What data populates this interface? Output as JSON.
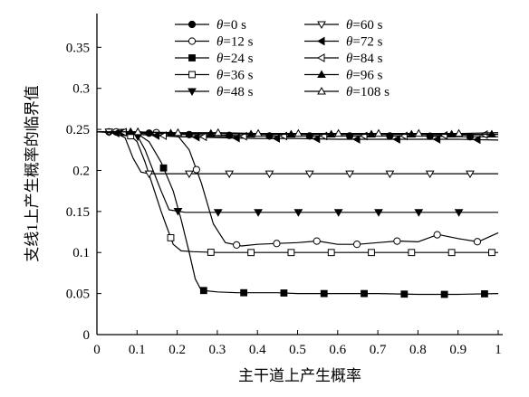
{
  "chart_data": {
    "type": "line",
    "title": "",
    "xlabel": "主干道上产生概率",
    "ylabel": "支线1上产生概率的临界值",
    "xlim": [
      0,
      1
    ],
    "ylim": [
      0,
      0.4
    ],
    "x_ticks": [
      "0",
      "0.1",
      "0.2",
      "0.3",
      "0.4",
      "0.5",
      "0.6",
      "0.7",
      "0.8",
      "0.9",
      "1"
    ],
    "y_ticks": [
      "0",
      "0.05",
      "0.1",
      "0.15",
      "0.2",
      "0.25",
      "0.3",
      "0.35"
    ],
    "legend_position": "top",
    "grid": false,
    "series": [
      {
        "name": "θ=0 s",
        "legend_symbol": "θ",
        "legend_value": "=0 s",
        "marker": "circle-filled",
        "x": [
          0,
          0.05,
          0.1,
          0.15,
          0.2,
          0.3,
          0.4,
          0.5,
          0.6,
          0.7,
          0.8,
          0.9,
          1.0
        ],
        "y": [
          0.247,
          0.247,
          0.246,
          0.245,
          0.244,
          0.243,
          0.242,
          0.242,
          0.242,
          0.242,
          0.242,
          0.241,
          0.241
        ]
      },
      {
        "name": "θ=12 s",
        "legend_symbol": "θ",
        "legend_value": "=12 s",
        "marker": "circle-open",
        "x": [
          0,
          0.1,
          0.15,
          0.2,
          0.23,
          0.26,
          0.29,
          0.32,
          0.36,
          0.4,
          0.45,
          0.5,
          0.55,
          0.6,
          0.65,
          0.7,
          0.75,
          0.8,
          0.85,
          0.9,
          0.95,
          1.0
        ],
        "y": [
          0.247,
          0.247,
          0.246,
          0.243,
          0.225,
          0.185,
          0.135,
          0.112,
          0.108,
          0.11,
          0.111,
          0.112,
          0.114,
          0.11,
          0.11,
          0.112,
          0.114,
          0.113,
          0.122,
          0.117,
          0.113,
          0.124
        ]
      },
      {
        "name": "θ=24 s",
        "legend_symbol": "θ",
        "legend_value": "=24 s",
        "marker": "square-filled",
        "x": [
          0,
          0.05,
          0.1,
          0.13,
          0.16,
          0.19,
          0.21,
          0.23,
          0.245,
          0.26,
          0.3,
          0.35,
          0.4,
          0.45,
          0.5,
          0.6,
          0.7,
          0.8,
          0.9,
          1.0
        ],
        "y": [
          0.247,
          0.247,
          0.245,
          0.235,
          0.21,
          0.175,
          0.14,
          0.1,
          0.068,
          0.054,
          0.052,
          0.051,
          0.051,
          0.051,
          0.05,
          0.05,
          0.05,
          0.049,
          0.049,
          0.05
        ]
      },
      {
        "name": "θ=36 s",
        "legend_symbol": "θ",
        "legend_value": "=36 s",
        "marker": "square-open",
        "x": [
          0,
          0.05,
          0.08,
          0.1,
          0.12,
          0.14,
          0.16,
          0.175,
          0.19,
          0.21,
          0.24,
          0.3,
          0.4,
          0.5,
          0.6,
          0.7,
          0.8,
          0.9,
          1.0
        ],
        "y": [
          0.247,
          0.247,
          0.244,
          0.235,
          0.21,
          0.18,
          0.15,
          0.13,
          0.11,
          0.102,
          0.101,
          0.1,
          0.1,
          0.1,
          0.1,
          0.1,
          0.1,
          0.1,
          0.1
        ]
      },
      {
        "name": "θ=48 s",
        "legend_symbol": "θ",
        "legend_value": "=48 s",
        "marker": "triangle-down-filled",
        "x": [
          0,
          0.05,
          0.08,
          0.1,
          0.12,
          0.14,
          0.16,
          0.18,
          0.22,
          0.3,
          0.4,
          0.5,
          0.6,
          0.7,
          0.8,
          0.9,
          1.0
        ],
        "y": [
          0.247,
          0.247,
          0.246,
          0.243,
          0.225,
          0.2,
          0.175,
          0.152,
          0.149,
          0.149,
          0.149,
          0.149,
          0.149,
          0.149,
          0.149,
          0.149,
          0.149
        ]
      },
      {
        "name": "θ=60 s",
        "legend_symbol": "θ",
        "legend_value": "=60 s",
        "marker": "triangle-down-open",
        "x": [
          0,
          0.04,
          0.07,
          0.09,
          0.11,
          0.13,
          0.2,
          0.3,
          0.4,
          0.5,
          0.6,
          0.7,
          0.8,
          0.9,
          1.0
        ],
        "y": [
          0.247,
          0.247,
          0.24,
          0.215,
          0.198,
          0.196,
          0.196,
          0.196,
          0.196,
          0.196,
          0.196,
          0.196,
          0.196,
          0.196,
          0.196
        ]
      },
      {
        "name": "θ=72 s",
        "legend_symbol": "θ",
        "legend_value": "=72 s",
        "marker": "triangle-left-filled",
        "x": [
          0,
          0.1,
          0.2,
          0.3,
          0.4,
          0.5,
          0.6,
          0.7,
          0.8,
          0.9,
          1.0
        ],
        "y": [
          0.247,
          0.244,
          0.241,
          0.24,
          0.239,
          0.239,
          0.238,
          0.238,
          0.238,
          0.238,
          0.237
        ]
      },
      {
        "name": "θ=84 s",
        "legend_symbol": "θ",
        "legend_value": "=84 s",
        "marker": "triangle-left-open",
        "x": [
          0,
          0.05,
          0.1,
          0.15,
          0.2,
          0.3,
          0.4,
          0.5,
          0.6,
          0.7,
          0.8,
          0.9,
          1.0
        ],
        "y": [
          0.247,
          0.247,
          0.246,
          0.243,
          0.241,
          0.241,
          0.242,
          0.242,
          0.242,
          0.242,
          0.242,
          0.243,
          0.244
        ]
      },
      {
        "name": "θ=96 s",
        "legend_symbol": "θ",
        "legend_value": "=96 s",
        "marker": "triangle-up-filled",
        "x": [
          0,
          0.1,
          0.2,
          0.3,
          0.4,
          0.5,
          0.6,
          0.7,
          0.8,
          0.9,
          1.0
        ],
        "y": [
          0.247,
          0.247,
          0.245,
          0.245,
          0.244,
          0.244,
          0.244,
          0.244,
          0.244,
          0.244,
          0.244
        ]
      },
      {
        "name": "θ=108 s",
        "legend_symbol": "θ",
        "legend_value": "=108 s",
        "marker": "triangle-up-open",
        "x": [
          0,
          0.1,
          0.2,
          0.3,
          0.4,
          0.5,
          0.6,
          0.7,
          0.8,
          0.9,
          1.0
        ],
        "y": [
          0.247,
          0.247,
          0.246,
          0.246,
          0.245,
          0.245,
          0.245,
          0.245,
          0.245,
          0.245,
          0.246
        ]
      }
    ]
  }
}
